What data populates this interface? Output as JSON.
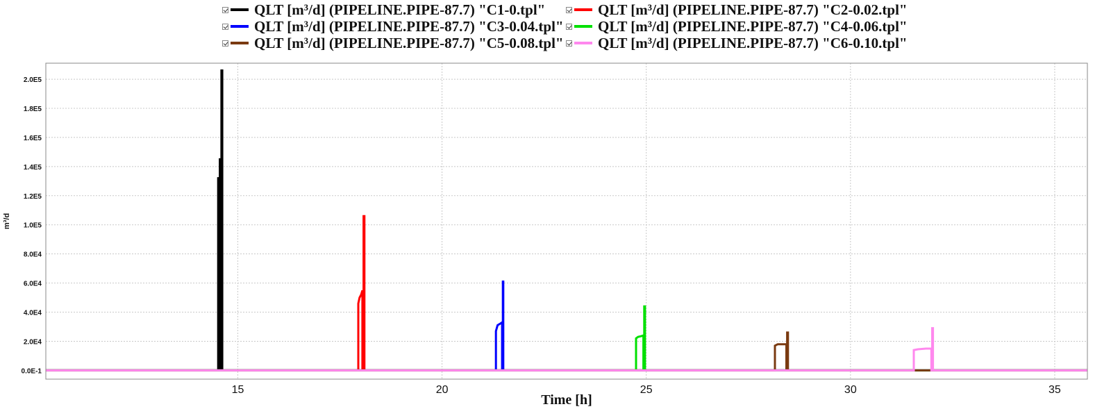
{
  "chart_data": {
    "type": "line",
    "title": "",
    "xlabel": "Time [h]",
    "ylabel": "m³/d",
    "xlim": [
      10.3,
      35.8
    ],
    "ylim": [
      -6000,
      211000
    ],
    "x_ticks": [
      15,
      20,
      25,
      30,
      35
    ],
    "x_tick_labels": [
      "15",
      "20",
      "25",
      "30",
      "35"
    ],
    "y_ticks": [
      0,
      20000,
      40000,
      60000,
      80000,
      100000,
      120000,
      140000,
      160000,
      180000,
      200000
    ],
    "y_tick_labels": [
      "0.0E-1",
      "2.0E4",
      "4.0E4",
      "6.0E4",
      "8.0E4",
      "1.0E5",
      "1.2E5",
      "1.4E5",
      "1.6E5",
      "1.8E5",
      "2.0E5"
    ],
    "grid": true,
    "legend": "top",
    "series": [
      {
        "name": "QLT [m³/d] (PIPELINE.PIPE-87.7) \"C1-0.tpl\"",
        "color": "#000000",
        "x": [
          10.3,
          14.52,
          14.52,
          14.54,
          14.54,
          14.56,
          14.56,
          14.58,
          14.58,
          14.6,
          14.6,
          14.62,
          14.62,
          35.8
        ],
        "y": [
          0,
          0,
          132000,
          132000,
          0,
          0,
          145000,
          145000,
          0,
          0,
          206000,
          206000,
          0,
          0
        ]
      },
      {
        "name": "QLT [m³/d] (PIPELINE.PIPE-87.7) \"C2-0.02.tpl\"",
        "color": "#ff0000",
        "x": [
          10.3,
          17.95,
          17.95,
          17.98,
          18.02,
          18.05,
          18.05,
          18.08,
          18.08,
          18.1,
          18.1,
          35.8
        ],
        "y": [
          0,
          0,
          46000,
          50000,
          52000,
          55000,
          0,
          0,
          106000,
          106000,
          0,
          0
        ]
      },
      {
        "name": "QLT [m³/d] (PIPELINE.PIPE-87.7) \"C3-0.04.tpl\"",
        "color": "#0000ff",
        "x": [
          10.3,
          21.32,
          21.32,
          21.36,
          21.42,
          21.47,
          21.47,
          21.49,
          21.49,
          21.5,
          21.5,
          35.8
        ],
        "y": [
          0,
          0,
          27000,
          31000,
          32000,
          33000,
          0,
          0,
          61000,
          61000,
          0,
          0
        ]
      },
      {
        "name": "QLT [m³/d] (PIPELINE.PIPE-87.7) \"C4-0.06.tpl\"",
        "color": "#00e000",
        "x": [
          10.3,
          24.75,
          24.75,
          24.8,
          24.88,
          24.93,
          24.93,
          24.95,
          24.95,
          24.97,
          24.97,
          35.8
        ],
        "y": [
          0,
          0,
          22000,
          23000,
          23500,
          24000,
          0,
          0,
          44000,
          44000,
          0,
          0
        ]
      },
      {
        "name": "QLT [m³/d] (PIPELINE.PIPE-87.7) \"C5-0.08.tpl\"",
        "color": "#7a3a10",
        "x": [
          10.3,
          28.15,
          28.15,
          28.22,
          28.35,
          28.43,
          28.43,
          28.45,
          28.45,
          28.47,
          28.47,
          31.58,
          31.58,
          32.07,
          32.07,
          35.8
        ],
        "y": [
          0,
          0,
          17000,
          18000,
          18000,
          18000,
          0,
          0,
          26000,
          26000,
          0,
          0,
          0,
          0,
          0,
          0
        ]
      },
      {
        "name": "QLT [m³/d] (PIPELINE.PIPE-87.7) \"C6-0.10.tpl\"",
        "color": "#ff88ee",
        "x": [
          10.3,
          31.55,
          31.55,
          31.65,
          31.85,
          31.98,
          31.98,
          32.0,
          32.0,
          32.02,
          32.02,
          35.8
        ],
        "y": [
          0,
          0,
          14000,
          14500,
          15000,
          15000,
          0,
          0,
          29000,
          29000,
          0,
          0
        ]
      }
    ]
  }
}
